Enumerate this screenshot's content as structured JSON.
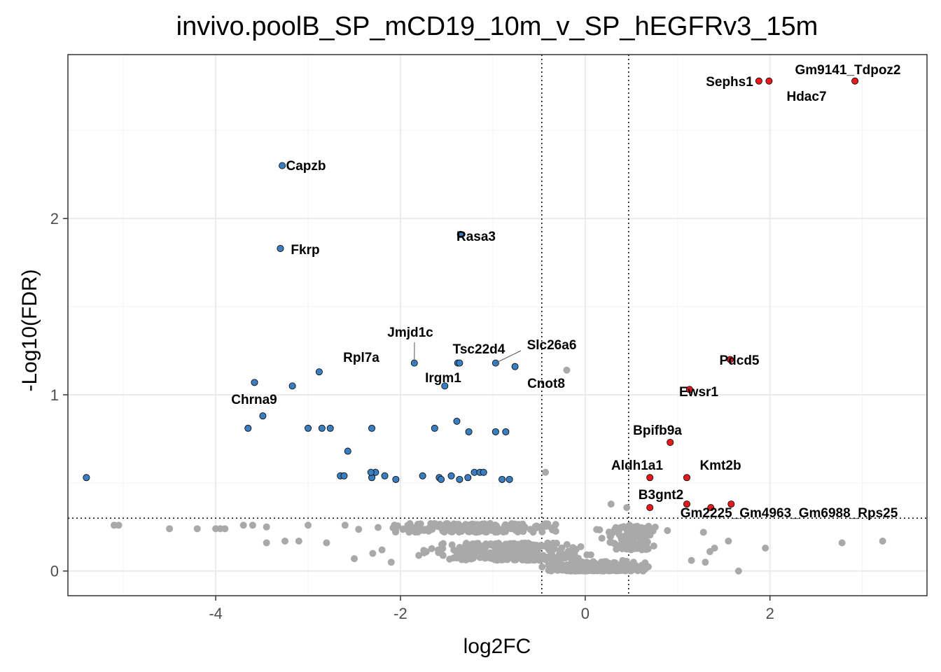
{
  "chart_data": {
    "type": "scatter",
    "title": "invivo.poolB_SP_mCD19_10m_v_SP_hEGFRv3_15m",
    "xlabel": "log2FC",
    "ylabel": "-Log10(FDR)",
    "xlim": [
      -5.6,
      3.7
    ],
    "ylim": [
      -0.14,
      2.93
    ],
    "x_ticks": [
      -4,
      -2,
      0,
      2
    ],
    "x_tick_labels": [
      "-4",
      "-2",
      "0",
      "2"
    ],
    "y_ticks": [
      0,
      1,
      2
    ],
    "y_tick_labels": [
      "0",
      "1",
      "2"
    ],
    "grid": true,
    "thresholds": {
      "log2fc": [
        -0.47,
        0.47
      ],
      "neg_log10_fdr": 0.3
    },
    "colors": {
      "up": "#e41a1c",
      "down": "#3a7ebf",
      "ns": "#a9a9a9",
      "outline": "#000000"
    },
    "series": [
      {
        "key": "up",
        "points": [
          [
            1.88,
            2.78
          ],
          [
            1.99,
            2.78
          ],
          [
            2.92,
            2.78
          ],
          [
            1.57,
            1.2
          ],
          [
            1.13,
            1.03
          ],
          [
            0.92,
            0.73
          ],
          [
            0.7,
            0.53
          ],
          [
            1.1,
            0.53
          ],
          [
            0.7,
            0.36
          ],
          [
            1.1,
            0.38
          ],
          [
            1.36,
            0.36
          ],
          [
            1.58,
            0.38
          ]
        ]
      },
      {
        "key": "down",
        "points": [
          [
            -3.28,
            2.3
          ],
          [
            -3.3,
            1.83
          ],
          [
            -1.35,
            1.91
          ],
          [
            -3.58,
            1.07
          ],
          [
            -2.88,
            1.13
          ],
          [
            -1.85,
            1.18
          ],
          [
            -1.38,
            1.18
          ],
          [
            -1.36,
            1.18
          ],
          [
            -0.97,
            1.18
          ],
          [
            -0.76,
            1.16
          ],
          [
            -3.17,
            1.05
          ],
          [
            -1.52,
            1.05
          ],
          [
            -3.49,
            0.88
          ],
          [
            -3.65,
            0.81
          ],
          [
            -3.0,
            0.81
          ],
          [
            -2.85,
            0.81
          ],
          [
            -2.76,
            0.81
          ],
          [
            -2.31,
            0.81
          ],
          [
            -1.63,
            0.81
          ],
          [
            -1.39,
            0.85
          ],
          [
            -1.26,
            0.79
          ],
          [
            -0.97,
            0.79
          ],
          [
            -0.86,
            0.79
          ],
          [
            -2.57,
            0.68
          ],
          [
            -5.4,
            0.53
          ],
          [
            -2.65,
            0.54
          ],
          [
            -2.61,
            0.54
          ],
          [
            -2.31,
            0.53
          ],
          [
            -2.27,
            0.56
          ],
          [
            -2.17,
            0.54
          ],
          [
            -2.05,
            0.52
          ],
          [
            -1.76,
            0.54
          ],
          [
            -1.58,
            0.53
          ],
          [
            -1.56,
            0.52
          ],
          [
            -1.45,
            0.54
          ],
          [
            -1.36,
            0.52
          ],
          [
            -1.27,
            0.53
          ],
          [
            -1.2,
            0.56
          ],
          [
            -1.14,
            0.56
          ],
          [
            -1.1,
            0.56
          ],
          [
            -0.9,
            0.52
          ],
          [
            -0.82,
            0.52
          ],
          [
            -2.32,
            0.56
          ]
        ]
      },
      {
        "key": "ns",
        "points": [
          [
            -0.2,
            1.14
          ],
          [
            0.28,
            0.38
          ],
          [
            -0.43,
            0.56
          ],
          [
            0.45,
            0.36
          ],
          [
            0.48,
            0.26
          ],
          [
            -5.1,
            0.26
          ],
          [
            -5.05,
            0.26
          ],
          [
            -4.5,
            0.24
          ],
          [
            -4.2,
            0.24
          ],
          [
            -4.0,
            0.24
          ],
          [
            -3.95,
            0.24
          ],
          [
            -3.9,
            0.24
          ],
          [
            -3.7,
            0.26
          ],
          [
            -3.6,
            0.26
          ],
          [
            -3.45,
            0.25
          ],
          [
            -3.45,
            0.16
          ],
          [
            -3.25,
            0.17
          ],
          [
            -3.1,
            0.17
          ],
          [
            -3.0,
            0.26
          ],
          [
            -2.8,
            0.16
          ],
          [
            -2.6,
            0.26
          ],
          [
            -2.5,
            0.07
          ],
          [
            -2.3,
            0.1
          ],
          [
            -2.2,
            0.12
          ],
          [
            -2.1,
            0.05
          ],
          [
            3.22,
            0.17
          ],
          [
            2.78,
            0.16
          ],
          [
            1.95,
            0.13
          ],
          [
            1.55,
            0.17
          ],
          [
            1.35,
            0.11
          ],
          [
            1.3,
            0.05
          ],
          [
            1.15,
            0.06
          ],
          [
            1.66,
            0.0
          ],
          [
            1.4,
            0.13
          ],
          [
            1.28,
            0.22
          ]
        ],
        "band_samples": 1150
      }
    ],
    "labels": [
      {
        "text": "Sephs1",
        "x": 1.88,
        "y": 2.78
      },
      {
        "text": "Gm9141_Tdpoz2",
        "x": 1.99,
        "y": 2.78
      },
      {
        "text": "Hdac7",
        "x": 2.92,
        "y": 2.78
      },
      {
        "text": "Capzb",
        "x": -3.28,
        "y": 2.3
      },
      {
        "text": "Fkrp",
        "x": -3.3,
        "y": 1.83
      },
      {
        "text": "Rasa3",
        "x": -1.35,
        "y": 1.91
      },
      {
        "text": "Jmjd1c",
        "x": -1.85,
        "y": 1.18
      },
      {
        "text": "Tsc22d4",
        "x": -1.38,
        "y": 1.18
      },
      {
        "text": "Slc26a6",
        "x": -0.97,
        "y": 1.18
      },
      {
        "text": "Rpl7a",
        "x": -2.88,
        "y": 1.13
      },
      {
        "text": "Irgm1",
        "x": -1.36,
        "y": 1.18
      },
      {
        "text": "Cnot8",
        "x": -0.76,
        "y": 1.16
      },
      {
        "text": "Chrna9",
        "x": -3.58,
        "y": 1.07
      },
      {
        "text": "Pdcd5",
        "x": 1.57,
        "y": 1.2
      },
      {
        "text": "Ewsr1",
        "x": 1.13,
        "y": 1.03
      },
      {
        "text": "Bpifb9a",
        "x": 0.92,
        "y": 0.73
      },
      {
        "text": "Aldh1a1",
        "x": 0.7,
        "y": 0.53
      },
      {
        "text": "Kmt2b",
        "x": 1.1,
        "y": 0.53
      },
      {
        "text": "B3gnt2",
        "x": 0.7,
        "y": 0.36
      },
      {
        "text": "Gm2225_Gm4963_Gm6988_Rps25",
        "x": 1.1,
        "y": 0.38
      }
    ]
  }
}
